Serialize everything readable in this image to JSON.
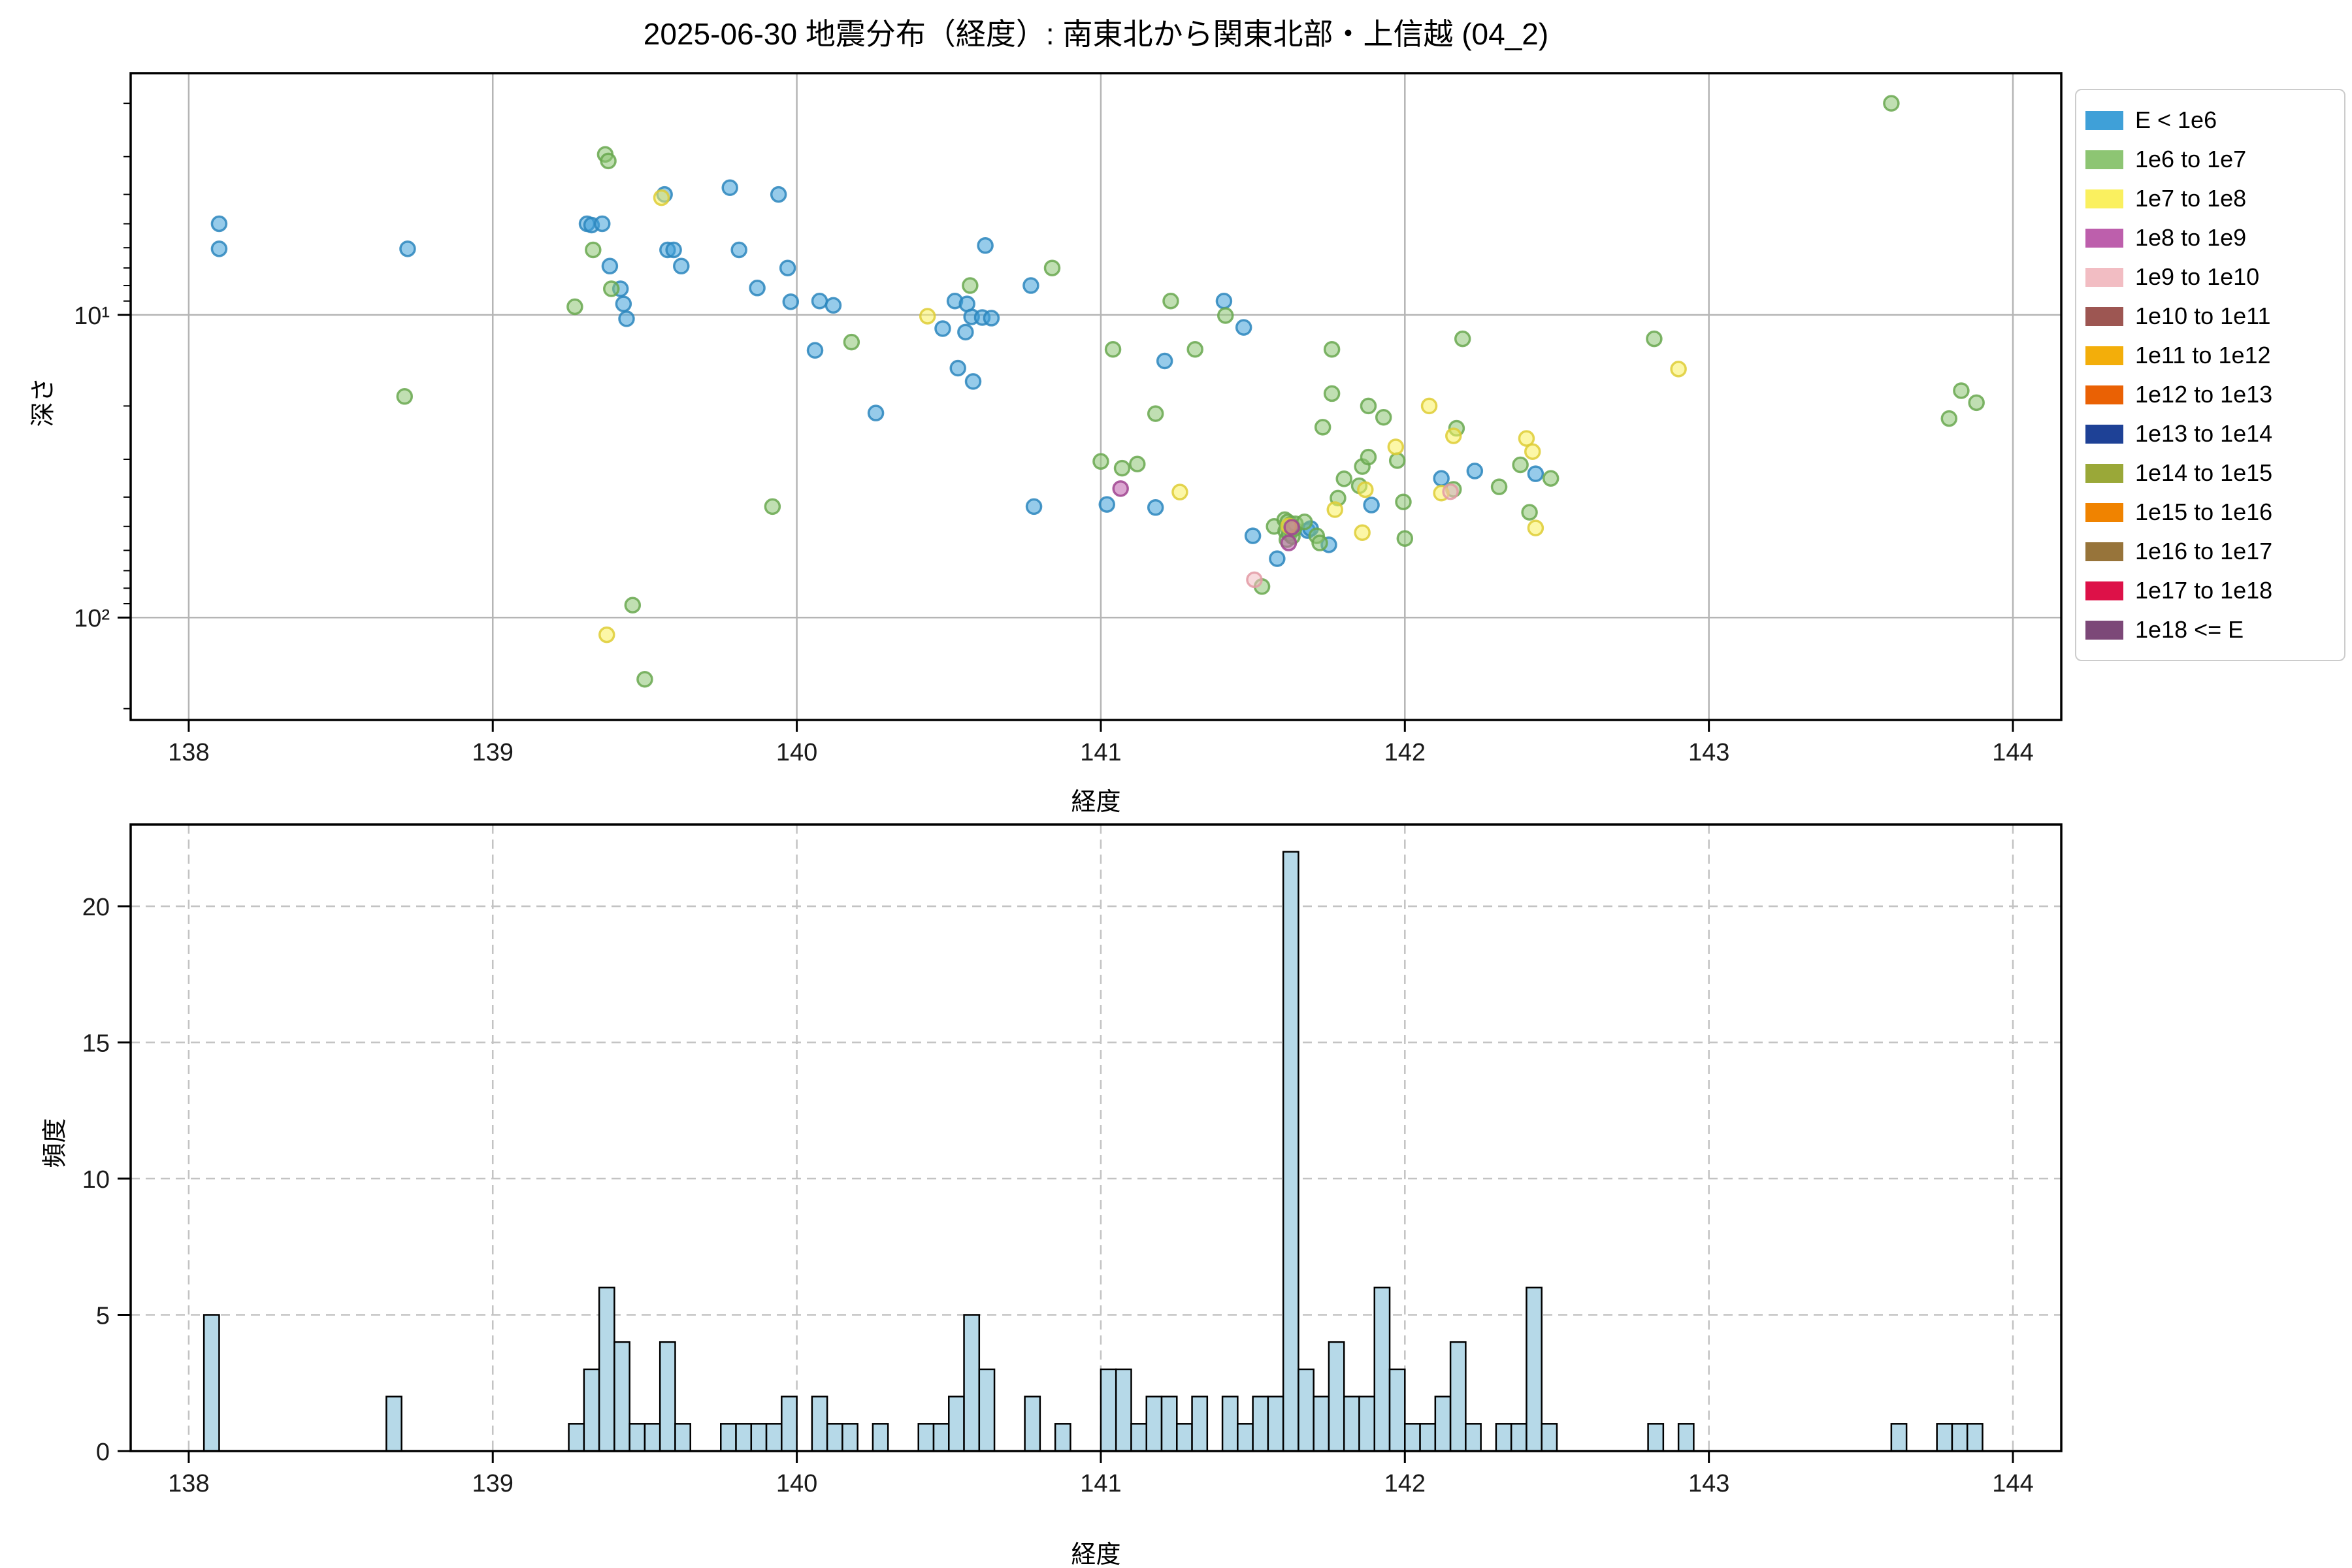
{
  "title": "2025-06-30 地震分布（経度）: 南東北から関東北部・上信越 (04_2)",
  "legend": {
    "entries": [
      {
        "label": "E < 1e6",
        "color": "#3FA0D8"
      },
      {
        "label": "1e6 to 1e7",
        "color": "#8DC573"
      },
      {
        "label": "1e7 to 1e8",
        "color": "#FAF05F"
      },
      {
        "label": "1e8 to 1e9",
        "color": "#BD5FAC"
      },
      {
        "label": "1e9 to 1e10",
        "color": "#F2BDC3"
      },
      {
        "label": "1e10 to 1e11",
        "color": "#9D5652"
      },
      {
        "label": "1e11 to 1e12",
        "color": "#F3AE0A"
      },
      {
        "label": "1e12 to 1e13",
        "color": "#EA6104"
      },
      {
        "label": "1e13 to 1e14",
        "color": "#1E4196"
      },
      {
        "label": "1e14 to 1e15",
        "color": "#9AA838"
      },
      {
        "label": "1e15 to 1e16",
        "color": "#F08300"
      },
      {
        "label": "1e16 to 1e17",
        "color": "#97743A"
      },
      {
        "label": "1e17 to 1e18",
        "color": "#DD1148"
      },
      {
        "label": "1e18 <= E",
        "color": "#7C4878"
      }
    ]
  },
  "chart_data": [
    {
      "type": "scatter",
      "name": "depth-vs-longitude",
      "xlabel": "経度",
      "ylabel": "深さ",
      "xlim": [
        137.809,
        144.159
      ],
      "x_ticks": [
        138,
        139,
        140,
        141,
        142,
        143,
        144
      ],
      "yscale": "log",
      "y_inverted": true,
      "ylim_top_depth": 1.59,
      "ylim_bottom_depth": 218,
      "y_major_ticks": [
        {
          "label": "10¹",
          "value": 10
        },
        {
          "label": "10²",
          "value": 100
        }
      ],
      "grid": "solid",
      "marker_radius": 11,
      "series": [
        {
          "name": "E < 1e6",
          "color": "#3FA0D8",
          "edge": "#2B86BD",
          "points": [
            [
              138.1,
              5.0
            ],
            [
              138.1,
              6.05
            ],
            [
              138.72,
              6.05
            ],
            [
              139.31,
              5.0
            ],
            [
              139.325,
              5.05
            ],
            [
              139.36,
              5.0
            ],
            [
              139.385,
              6.9
            ],
            [
              139.42,
              8.2
            ],
            [
              139.43,
              9.2
            ],
            [
              139.44,
              10.3
            ],
            [
              139.565,
              4.0
            ],
            [
              139.575,
              6.1
            ],
            [
              139.595,
              6.1
            ],
            [
              139.62,
              6.9
            ],
            [
              139.78,
              3.8
            ],
            [
              139.81,
              6.1
            ],
            [
              139.87,
              8.15
            ],
            [
              139.94,
              4.0
            ],
            [
              139.97,
              7.0
            ],
            [
              139.98,
              9.05
            ],
            [
              140.06,
              13.1
            ],
            [
              140.075,
              9.0
            ],
            [
              140.12,
              9.3
            ],
            [
              140.26,
              21.1
            ],
            [
              140.48,
              11.1
            ],
            [
              140.52,
              9.0
            ],
            [
              140.53,
              15.0
            ],
            [
              140.555,
              11.4
            ],
            [
              140.56,
              9.2
            ],
            [
              140.575,
              10.15
            ],
            [
              140.58,
              16.6
            ],
            [
              140.61,
              10.2
            ],
            [
              140.62,
              5.9
            ],
            [
              140.64,
              10.25
            ],
            [
              140.77,
              8.0
            ],
            [
              140.78,
              43
            ],
            [
              141.02,
              42.3
            ],
            [
              141.18,
              43.3
            ],
            [
              141.21,
              14.2
            ],
            [
              141.405,
              9.0
            ],
            [
              141.47,
              11.0
            ],
            [
              141.5,
              53.7
            ],
            [
              141.58,
              63.9
            ],
            [
              141.68,
              51.6
            ],
            [
              141.69,
              50.8
            ],
            [
              141.75,
              57.5
            ],
            [
              141.89,
              42.5
            ],
            [
              142.12,
              34.7
            ],
            [
              142.23,
              32.8
            ],
            [
              142.43,
              33.5
            ]
          ]
        },
        {
          "name": "1e6 to 1e7",
          "color": "#8DC573",
          "edge": "#69A84F",
          "points": [
            [
              138.71,
              18.6
            ],
            [
              139.27,
              9.4
            ],
            [
              139.33,
              6.1
            ],
            [
              139.37,
              2.95
            ],
            [
              139.38,
              3.1
            ],
            [
              139.39,
              8.2
            ],
            [
              139.46,
              91
            ],
            [
              139.5,
              160
            ],
            [
              139.92,
              43
            ],
            [
              140.18,
              12.3
            ],
            [
              140.57,
              8.0
            ],
            [
              140.84,
              7.0
            ],
            [
              141.0,
              30.5
            ],
            [
              141.04,
              13.0
            ],
            [
              141.07,
              32.1
            ],
            [
              141.12,
              31.1
            ],
            [
              141.18,
              21.2
            ],
            [
              141.23,
              9.0
            ],
            [
              141.31,
              13.0
            ],
            [
              141.41,
              10.05
            ],
            [
              141.53,
              79
            ],
            [
              141.57,
              50
            ],
            [
              141.605,
              47.5
            ],
            [
              141.608,
              51.8
            ],
            [
              141.612,
              55.3
            ],
            [
              141.615,
              48.3
            ],
            [
              141.62,
              52.8
            ],
            [
              141.625,
              49.2
            ],
            [
              141.63,
              54.0
            ],
            [
              141.635,
              50.9
            ],
            [
              141.64,
              49.0
            ],
            [
              141.67,
              48.3
            ],
            [
              141.71,
              53.7
            ],
            [
              141.72,
              56.7
            ],
            [
              141.73,
              23.5
            ],
            [
              141.76,
              13.0
            ],
            [
              141.76,
              18.2
            ],
            [
              141.78,
              40.3
            ],
            [
              141.8,
              34.8
            ],
            [
              141.85,
              36.7
            ],
            [
              141.86,
              31.7
            ],
            [
              141.88,
              20.0
            ],
            [
              141.88,
              29.5
            ],
            [
              141.93,
              21.8
            ],
            [
              141.975,
              30.3
            ],
            [
              141.995,
              41.5
            ],
            [
              142.0,
              54.8
            ],
            [
              142.16,
              37.7
            ],
            [
              142.17,
              23.7
            ],
            [
              142.19,
              12.0
            ],
            [
              142.31,
              37.0
            ],
            [
              142.38,
              31.3
            ],
            [
              142.41,
              44.9
            ],
            [
              142.48,
              34.7
            ],
            [
              142.82,
              12.0
            ],
            [
              143.6,
              2.0
            ],
            [
              143.79,
              22
            ],
            [
              143.83,
              17.8
            ],
            [
              143.88,
              19.5
            ]
          ]
        },
        {
          "name": "1e7 to 1e8",
          "color": "#FAF05F",
          "edge": "#DECC35",
          "points": [
            [
              139.375,
              114
            ],
            [
              139.555,
              4.1
            ],
            [
              140.43,
              10.1
            ],
            [
              141.26,
              38.5
            ],
            [
              141.618,
              49.8
            ],
            [
              141.77,
              44.0
            ],
            [
              141.86,
              52.4
            ],
            [
              141.87,
              37.8
            ],
            [
              141.97,
              27.3
            ],
            [
              142.08,
              20.0
            ],
            [
              142.12,
              38.8
            ],
            [
              142.16,
              25.1
            ],
            [
              142.4,
              25.6
            ],
            [
              142.42,
              28.3
            ],
            [
              142.43,
              50.6
            ],
            [
              142.9,
              15.1
            ]
          ]
        },
        {
          "name": "1e8 to 1e9",
          "color": "#BD5FAC",
          "edge": "#A04490",
          "points": [
            [
              141.065,
              37.5
            ],
            [
              141.618,
              56.7
            ],
            [
              141.628,
              50.3
            ]
          ]
        },
        {
          "name": "1e9 to 1e10",
          "color": "#F2BDC3",
          "edge": "#E39AA4",
          "points": [
            [
              141.505,
              75
            ],
            [
              142.15,
              38.4
            ]
          ]
        }
      ]
    },
    {
      "type": "bar",
      "name": "longitude-histogram",
      "xlabel": "経度",
      "ylabel": "頻度",
      "xlim": [
        137.809,
        144.159
      ],
      "x_ticks": [
        138,
        139,
        140,
        141,
        142,
        143,
        144
      ],
      "ylim": [
        0,
        23
      ],
      "y_ticks": [
        0,
        5,
        10,
        15,
        20
      ],
      "grid": "dashed",
      "bar_color": "#B6D9E8",
      "bar_edge": "#000000",
      "bin_width": 0.05,
      "bins": [
        [
          138.05,
          5
        ],
        [
          138.65,
          2
        ],
        [
          139.25,
          1
        ],
        [
          139.3,
          3
        ],
        [
          139.35,
          6
        ],
        [
          139.4,
          4
        ],
        [
          139.45,
          1
        ],
        [
          139.5,
          1
        ],
        [
          139.55,
          4
        ],
        [
          139.6,
          1
        ],
        [
          139.75,
          1
        ],
        [
          139.8,
          1
        ],
        [
          139.85,
          1
        ],
        [
          139.9,
          1
        ],
        [
          139.95,
          2
        ],
        [
          140.05,
          2
        ],
        [
          140.1,
          1
        ],
        [
          140.15,
          1
        ],
        [
          140.25,
          1
        ],
        [
          140.4,
          1
        ],
        [
          140.45,
          1
        ],
        [
          140.5,
          2
        ],
        [
          140.55,
          5
        ],
        [
          140.6,
          3
        ],
        [
          140.75,
          2
        ],
        [
          140.85,
          1
        ],
        [
          141.0,
          3
        ],
        [
          141.05,
          3
        ],
        [
          141.1,
          1
        ],
        [
          141.15,
          2
        ],
        [
          141.2,
          2
        ],
        [
          141.25,
          1
        ],
        [
          141.3,
          2
        ],
        [
          141.4,
          2
        ],
        [
          141.45,
          1
        ],
        [
          141.5,
          2
        ],
        [
          141.55,
          2
        ],
        [
          141.6,
          22
        ],
        [
          141.65,
          3
        ],
        [
          141.7,
          2
        ],
        [
          141.75,
          4
        ],
        [
          141.8,
          2
        ],
        [
          141.85,
          2
        ],
        [
          141.9,
          6
        ],
        [
          141.95,
          3
        ],
        [
          142.0,
          1
        ],
        [
          142.05,
          1
        ],
        [
          142.1,
          2
        ],
        [
          142.15,
          4
        ],
        [
          142.2,
          1
        ],
        [
          142.3,
          1
        ],
        [
          142.35,
          1
        ],
        [
          142.4,
          6
        ],
        [
          142.45,
          1
        ],
        [
          142.8,
          1
        ],
        [
          142.9,
          1
        ],
        [
          143.6,
          1
        ],
        [
          143.75,
          1
        ],
        [
          143.8,
          1
        ],
        [
          143.85,
          1
        ]
      ]
    }
  ]
}
